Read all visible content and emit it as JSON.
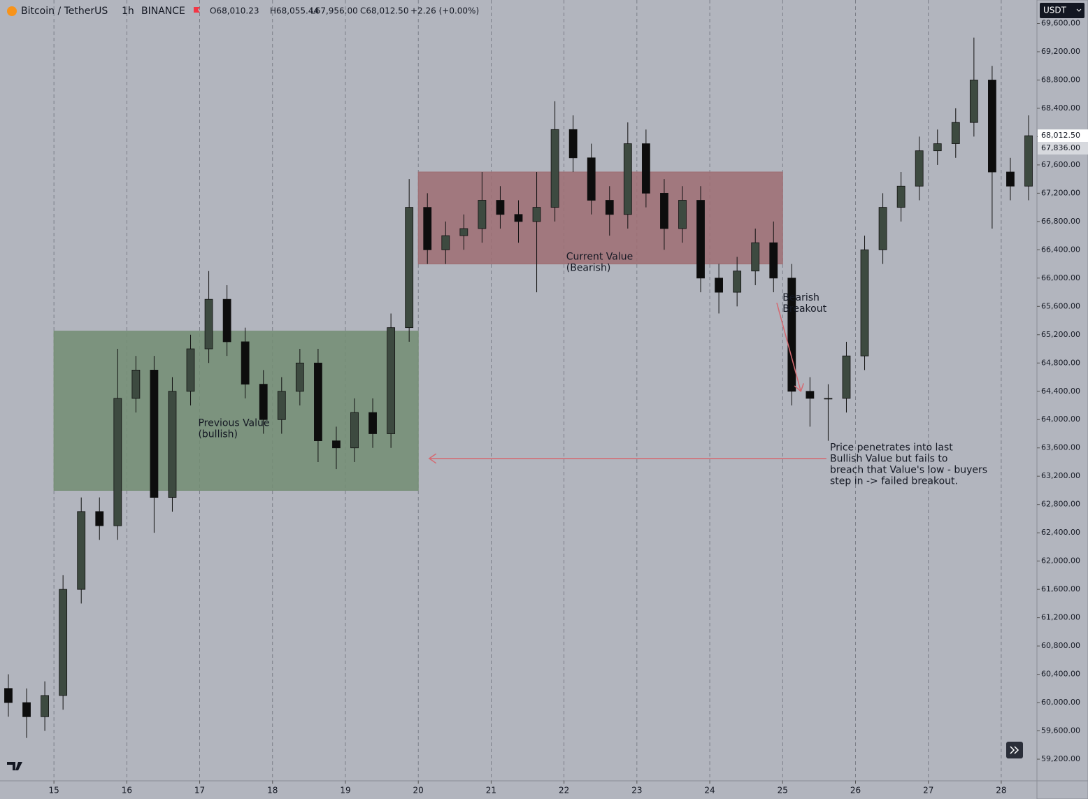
{
  "chart_data": {
    "type": "candlestick",
    "header": {
      "symbol": "Bitcoin / TetherUS",
      "interval": "1h",
      "exchange": "BINANCE",
      "open": "O68,010.23",
      "high": "H68,055.44",
      "low": "L67,956.00",
      "close": "C68,012.50",
      "change": "+2.26 (+0.00%)"
    },
    "currency": "USDT",
    "x": [
      14.375,
      14.625,
      14.875,
      15.125,
      15.375,
      15.625,
      15.875,
      16.125,
      16.375,
      16.625,
      16.875,
      17.125,
      17.375,
      17.625,
      17.875,
      18.125,
      18.375,
      18.625,
      18.875,
      19.125,
      19.375,
      19.625,
      19.875,
      20.125,
      20.375,
      20.625,
      20.875,
      21.125,
      21.375,
      21.625,
      21.875,
      22.125,
      22.375,
      22.625,
      22.875,
      23.125,
      23.375,
      23.625,
      23.875,
      24.125,
      24.375,
      24.625,
      24.875,
      25.125,
      25.375,
      25.625,
      25.875,
      26.125,
      26.375,
      26.625,
      26.875,
      27.125,
      27.375,
      27.625,
      27.875,
      28.125,
      28.375
    ],
    "open": [
      60200,
      60000,
      59800,
      60100,
      61600,
      62700,
      62500,
      64300,
      64700,
      62900,
      64400,
      65000,
      65700,
      65100,
      64500,
      64000,
      64400,
      64800,
      63700,
      63600,
      64100,
      63800,
      65300,
      67000,
      66400,
      66600,
      66700,
      67100,
      66900,
      66800,
      67000,
      68100,
      67700,
      67100,
      66900,
      67900,
      67200,
      66700,
      67100,
      66000,
      65800,
      66100,
      66500,
      66000,
      64400,
      64300,
      64300,
      64900,
      66400,
      67000,
      67300,
      67800,
      67900,
      68200,
      68800,
      67500,
      67300
    ],
    "high": [
      60400,
      60200,
      60300,
      61800,
      62900,
      62900,
      65000,
      64900,
      64900,
      64600,
      65200,
      66100,
      65900,
      65300,
      64700,
      64600,
      65000,
      65000,
      63900,
      64300,
      64300,
      65500,
      67400,
      67200,
      66800,
      66900,
      67500,
      67300,
      67100,
      67500,
      68500,
      68300,
      67900,
      67300,
      68200,
      68100,
      67400,
      67300,
      67300,
      66200,
      66300,
      66700,
      66800,
      66200,
      64600,
      64500,
      65100,
      66600,
      67200,
      67500,
      68000,
      68100,
      68400,
      69400,
      69000,
      67700,
      68300
    ],
    "low": [
      59800,
      59500,
      59600,
      59900,
      61400,
      62300,
      62300,
      64100,
      62400,
      62700,
      64200,
      64800,
      64900,
      64300,
      63800,
      63800,
      64200,
      63400,
      63300,
      63400,
      63600,
      63600,
      65100,
      66200,
      66200,
      66400,
      66500,
      66700,
      66500,
      65800,
      66800,
      67500,
      66900,
      66600,
      66700,
      67000,
      66400,
      66500,
      65800,
      65500,
      65600,
      65900,
      65800,
      64200,
      63900,
      63700,
      64100,
      64700,
      66200,
      66800,
      67100,
      67600,
      67700,
      68000,
      66700,
      67100,
      67100
    ],
    "close": [
      60000,
      59800,
      60100,
      61600,
      62700,
      62500,
      64300,
      64700,
      62900,
      64400,
      65000,
      65700,
      65100,
      64500,
      64000,
      64400,
      64800,
      63700,
      63600,
      64100,
      63800,
      65300,
      67000,
      66400,
      66600,
      66700,
      67100,
      66900,
      66800,
      67000,
      68100,
      67700,
      67100,
      66900,
      67900,
      67200,
      66700,
      67100,
      66000,
      65800,
      66100,
      66500,
      66000,
      64400,
      64300,
      64300,
      64900,
      66400,
      67000,
      67300,
      67800,
      67900,
      68200,
      68800,
      67500,
      67300,
      68012.5
    ],
    "up_color": "#3d4a40",
    "down_color": "#0d0d0d",
    "xlim": [
      14.26,
      28.49
    ],
    "xticks": [
      15,
      16,
      17,
      18,
      19,
      20,
      21,
      22,
      23,
      24,
      25,
      26,
      27,
      28
    ],
    "ylim": [
      58894,
      69931
    ],
    "yticks": [
      {
        "value": 59200,
        "label": "59,200.00"
      },
      {
        "value": 59600,
        "label": "59,600.00"
      },
      {
        "value": 60000,
        "label": "60,000.00"
      },
      {
        "value": 60400,
        "label": "60,400.00"
      },
      {
        "value": 60800,
        "label": "60,800.00"
      },
      {
        "value": 61200,
        "label": "61,200.00"
      },
      {
        "value": 61600,
        "label": "61,600.00"
      },
      {
        "value": 62000,
        "label": "62,000.00"
      },
      {
        "value": 62400,
        "label": "62,400.00"
      },
      {
        "value": 62800,
        "label": "62,800.00"
      },
      {
        "value": 63200,
        "label": "63,200.00"
      },
      {
        "value": 63600,
        "label": "63,600.00"
      },
      {
        "value": 64000,
        "label": "64,000.00"
      },
      {
        "value": 64400,
        "label": "64,400.00"
      },
      {
        "value": 64800,
        "label": "64,800.00"
      },
      {
        "value": 65200,
        "label": "65,200.00"
      },
      {
        "value": 65600,
        "label": "65,600.00"
      },
      {
        "value": 66000,
        "label": "66,000.00"
      },
      {
        "value": 66400,
        "label": "66,400.00"
      },
      {
        "value": 66800,
        "label": "66,800.00"
      },
      {
        "value": 67200,
        "label": "67,200.00"
      },
      {
        "value": 67600,
        "label": "67,600.00"
      },
      {
        "value": 68000,
        "label": "68,000.00"
      },
      {
        "value": 68400,
        "label": "68,400.00"
      },
      {
        "value": 68800,
        "label": "68,800.00"
      },
      {
        "value": 69200,
        "label": "69,200.00"
      },
      {
        "value": 69600,
        "label": "69,600.00"
      }
    ],
    "grid": true,
    "price_tags": [
      {
        "value": 68012.5,
        "label": "68,012.50",
        "color": "#ffffff"
      },
      {
        "value": 67836,
        "label": "67,836.00",
        "color": "#d7d9de"
      }
    ],
    "zones": [
      {
        "x": [
          15,
          20
        ],
        "y": [
          63000,
          65250
        ],
        "color": "#8fb08f",
        "lines": [
          "Previous Value",
          "(bullish)"
        ],
        "label_at": [
          16.98,
          63950
        ]
      },
      {
        "x": [
          20,
          25
        ],
        "y": [
          66200,
          67500
        ],
        "color": "#c6888f",
        "lines": [
          "Current Value",
          "(Bearish)"
        ],
        "label_at": [
          22.03,
          66300
        ]
      }
    ],
    "annotations": [
      {
        "lines": [
          "Bearish",
          "Breakout"
        ],
        "at": [
          25.0,
          65720
        ]
      },
      {
        "lines": [
          "Price penetrates into last",
          "Bullish Value but fails to",
          "breach that Value's low - buyers",
          "step in -> failed breakout."
        ],
        "at": [
          25.65,
          63600
        ]
      }
    ],
    "arrows": [
      {
        "from": [
          25.6,
          63450
        ],
        "to": [
          20.15,
          63450
        ],
        "color": "#d46a72"
      },
      {
        "from": [
          24.92,
          65650
        ],
        "to": [
          25.25,
          64400
        ],
        "color": "#d46a72"
      }
    ]
  }
}
